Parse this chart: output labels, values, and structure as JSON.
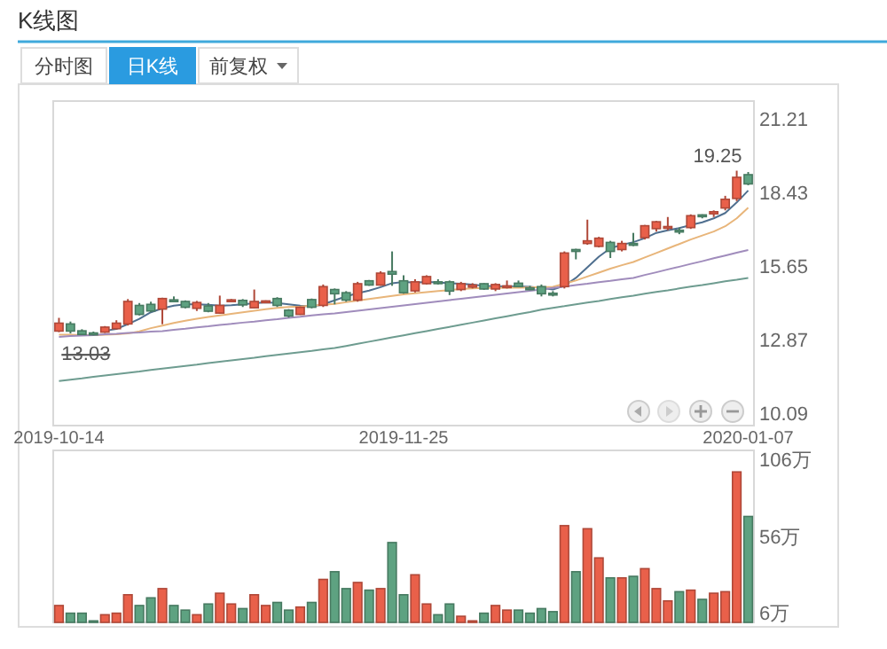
{
  "chart_data": [
    {
      "type": "candlestick",
      "title": "K线图",
      "annotations": [
        "分时图",
        "日K线",
        "前复权",
        "19.25",
        "13.03"
      ],
      "categories": [
        "2019-10-14",
        null,
        null,
        null,
        null,
        null,
        null,
        null,
        null,
        null,
        null,
        null,
        null,
        null,
        null,
        null,
        null,
        null,
        null,
        null,
        null,
        null,
        null,
        null,
        null,
        null,
        null,
        null,
        null,
        null,
        "2019-11-25",
        null,
        null,
        null,
        null,
        null,
        null,
        null,
        null,
        null,
        null,
        null,
        null,
        null,
        null,
        null,
        null,
        null,
        null,
        null,
        null,
        null,
        null,
        null,
        null,
        null,
        null,
        null,
        null,
        null,
        "2020-01-07"
      ],
      "ohlc": [
        [
          13.19,
          13.69,
          13.15,
          13.49
        ],
        [
          13.46,
          13.55,
          13.1,
          13.19
        ],
        [
          13.2,
          13.26,
          13.05,
          13.06
        ],
        [
          13.12,
          13.17,
          13.03,
          13.05
        ],
        [
          13.15,
          13.38,
          13.12,
          13.34
        ],
        [
          13.28,
          13.6,
          13.25,
          13.49
        ],
        [
          13.46,
          14.4,
          13.4,
          14.31
        ],
        [
          14.16,
          14.25,
          13.78,
          13.82
        ],
        [
          14.2,
          14.3,
          13.9,
          13.95
        ],
        [
          14.02,
          14.45,
          13.45,
          14.42
        ],
        [
          14.37,
          14.5,
          14.3,
          14.31
        ],
        [
          14.31,
          14.35,
          14.05,
          14.09
        ],
        [
          14.05,
          14.33,
          13.95,
          14.27
        ],
        [
          14.14,
          14.25,
          13.9,
          13.94
        ],
        [
          13.87,
          14.53,
          13.85,
          14.16
        ],
        [
          14.33,
          14.4,
          14.3,
          14.37
        ],
        [
          14.35,
          14.4,
          14.1,
          14.18
        ],
        [
          14.07,
          14.76,
          14.05,
          14.31
        ],
        [
          14.29,
          14.35,
          14.27,
          14.33
        ],
        [
          14.42,
          14.47,
          14.1,
          14.16
        ],
        [
          13.98,
          14.02,
          13.7,
          13.76
        ],
        [
          13.82,
          14.12,
          13.8,
          14.09
        ],
        [
          14.38,
          14.42,
          14.05,
          14.09
        ],
        [
          14.16,
          14.95,
          14.1,
          14.87
        ],
        [
          14.76,
          14.8,
          14.2,
          14.6
        ],
        [
          14.64,
          14.7,
          14.3,
          14.36
        ],
        [
          14.36,
          15.05,
          14.3,
          14.98
        ],
        [
          15.09,
          15.12,
          14.9,
          14.93
        ],
        [
          14.93,
          15.45,
          14.9,
          15.38
        ],
        [
          15.44,
          16.2,
          14.9,
          15.34
        ],
        [
          15.09,
          15.3,
          14.6,
          14.64
        ],
        [
          14.71,
          15.15,
          14.65,
          15.05
        ],
        [
          14.98,
          15.3,
          14.95,
          15.25
        ],
        [
          15.05,
          15.15,
          14.95,
          15.0
        ],
        [
          15.05,
          15.1,
          14.55,
          14.7
        ],
        [
          14.76,
          15.05,
          14.7,
          14.98
        ],
        [
          14.85,
          15.0,
          14.8,
          14.93
        ],
        [
          14.98,
          15.0,
          14.75,
          14.78
        ],
        [
          14.78,
          15.0,
          14.7,
          14.95
        ],
        [
          14.85,
          15.1,
          14.8,
          14.9
        ],
        [
          15.0,
          15.1,
          14.85,
          14.87
        ],
        [
          14.82,
          14.9,
          14.75,
          14.8
        ],
        [
          14.87,
          14.95,
          14.5,
          14.6
        ],
        [
          14.62,
          14.7,
          14.5,
          14.58
        ],
        [
          14.87,
          16.2,
          14.8,
          16.14
        ],
        [
          16.27,
          16.3,
          15.9,
          16.2
        ],
        [
          16.5,
          17.4,
          16.45,
          16.6
        ],
        [
          16.39,
          16.75,
          16.35,
          16.7
        ],
        [
          16.54,
          16.6,
          15.95,
          16.2
        ],
        [
          16.27,
          16.6,
          16.2,
          16.5
        ],
        [
          16.5,
          16.9,
          16.4,
          16.45
        ],
        [
          16.72,
          17.2,
          16.65,
          17.17
        ],
        [
          17.06,
          17.35,
          16.95,
          17.32
        ],
        [
          17.08,
          17.5,
          17.0,
          17.14
        ],
        [
          17.0,
          17.1,
          16.85,
          16.95
        ],
        [
          17.1,
          17.6,
          17.05,
          17.55
        ],
        [
          17.58,
          17.6,
          17.45,
          17.52
        ],
        [
          17.62,
          17.75,
          17.5,
          17.7
        ],
        [
          17.84,
          18.3,
          17.75,
          18.17
        ],
        [
          18.2,
          19.25,
          18.1,
          19.0
        ],
        [
          19.1,
          19.2,
          18.7,
          18.75
        ]
      ],
      "colors": [
        "#e9604a",
        "#5ea281",
        "#5ea281",
        "#5ea281",
        "#e9604a",
        "#e9604a",
        "#e9604a",
        "#5ea281",
        "#5ea281",
        "#e9604a",
        "#5ea281",
        "#5ea281",
        "#e9604a",
        "#5ea281",
        "#e9604a",
        "#e9604a",
        "#5ea281",
        "#e9604a",
        "#e9604a",
        "#5ea281",
        "#5ea281",
        "#e9604a",
        "#5ea281",
        "#e9604a",
        "#5ea281",
        "#5ea281",
        "#e9604a",
        "#5ea281",
        "#e9604a",
        "#5ea281",
        "#5ea281",
        "#e9604a",
        "#e9604a",
        "#5ea281",
        "#5ea281",
        "#e9604a",
        "#e9604a",
        "#5ea281",
        "#e9604a",
        "#e9604a",
        "#5ea281",
        "#5ea281",
        "#5ea281",
        "#5ea281",
        "#e9604a",
        "#5ea281",
        "#e9604a",
        "#e9604a",
        "#5ea281",
        "#e9604a",
        "#5ea281",
        "#e9604a",
        "#e9604a",
        "#e9604a",
        "#5ea281",
        "#e9604a",
        "#5ea281",
        "#e9604a",
        "#e9604a",
        "#e9604a",
        "#5ea281"
      ],
      "series": [
        {
          "type": "line",
          "color": "#4f6f8f",
          "values": [
            null,
            null,
            null,
            null,
            13.2,
            13.27,
            13.45,
            13.65,
            13.9,
            14.05,
            14.15,
            14.2,
            14.2,
            14.18,
            14.15,
            14.17,
            14.2,
            14.24,
            14.28,
            14.25,
            14.2,
            14.15,
            14.12,
            14.2,
            14.35,
            14.5,
            14.62,
            14.72,
            14.85,
            15.0,
            15.05,
            15.02,
            15.05,
            15.03,
            15.0,
            14.98,
            14.95,
            14.9,
            14.88,
            14.88,
            14.88,
            14.86,
            14.82,
            14.76,
            14.9,
            15.2,
            15.6,
            16.0,
            16.32,
            16.45,
            16.55,
            16.7,
            16.9,
            17.0,
            17.08,
            17.2,
            17.3,
            17.45,
            17.65,
            18.05,
            18.5
          ]
        },
        {
          "type": "line",
          "color": "#e8b57a",
          "values": [
            13.05,
            13.05,
            13.04,
            13.04,
            13.05,
            13.07,
            13.1,
            13.18,
            13.3,
            13.4,
            13.5,
            13.58,
            13.66,
            13.72,
            13.78,
            13.84,
            13.9,
            13.96,
            14.02,
            14.07,
            14.1,
            14.12,
            14.15,
            14.18,
            14.22,
            14.28,
            14.34,
            14.4,
            14.46,
            14.52,
            14.58,
            14.62,
            14.66,
            14.7,
            14.74,
            14.78,
            14.8,
            14.82,
            14.82,
            14.83,
            14.83,
            14.84,
            14.85,
            14.86,
            14.98,
            15.1,
            15.25,
            15.4,
            15.55,
            15.68,
            15.8,
            15.97,
            16.14,
            16.31,
            16.48,
            16.65,
            16.8,
            16.95,
            17.15,
            17.45,
            17.85
          ]
        },
        {
          "type": "line",
          "color": "#a08cbc",
          "values": [
            12.97,
            13.0,
            13.02,
            13.04,
            13.07,
            13.09,
            13.12,
            13.14,
            13.17,
            13.19,
            13.24,
            13.28,
            13.33,
            13.37,
            13.42,
            13.46,
            13.51,
            13.55,
            13.6,
            13.64,
            13.69,
            13.73,
            13.78,
            13.82,
            13.86,
            13.91,
            13.96,
            14.01,
            14.06,
            14.11,
            14.16,
            14.21,
            14.26,
            14.31,
            14.36,
            14.41,
            14.46,
            14.51,
            14.56,
            14.61,
            14.66,
            14.71,
            14.76,
            14.82,
            14.87,
            14.93,
            14.98,
            15.04,
            15.09,
            15.15,
            15.2,
            15.31,
            15.41,
            15.52,
            15.62,
            15.73,
            15.83,
            15.94,
            16.04,
            16.15,
            16.25
          ]
        },
        {
          "type": "line",
          "color": "#6e9c90",
          "values": [
            11.3,
            11.35,
            11.4,
            11.46,
            11.51,
            11.56,
            11.61,
            11.66,
            11.72,
            11.77,
            11.82,
            11.87,
            11.92,
            11.98,
            12.03,
            12.08,
            12.13,
            12.18,
            12.24,
            12.29,
            12.34,
            12.39,
            12.44,
            12.5,
            12.55,
            12.63,
            12.71,
            12.79,
            12.87,
            12.95,
            13.03,
            13.11,
            13.19,
            13.27,
            13.35,
            13.43,
            13.51,
            13.59,
            13.67,
            13.75,
            13.83,
            13.91,
            14.0,
            14.07,
            14.13,
            14.2,
            14.27,
            14.33,
            14.4,
            14.47,
            14.53,
            14.6,
            14.67,
            14.73,
            14.8,
            14.87,
            14.93,
            15.0,
            15.07,
            15.13,
            15.2
          ]
        }
      ],
      "ylim": [
        9.62,
        21.88
      ],
      "yticks": [
        10.09,
        12.87,
        15.65,
        18.43,
        21.21
      ]
    },
    {
      "type": "bar",
      "tick_labels": "y",
      "categories": [
        null,
        null,
        null,
        null,
        null,
        null,
        null,
        null,
        null,
        null,
        null,
        null,
        null,
        null,
        null,
        null,
        null,
        null,
        null,
        null,
        null,
        null,
        null,
        null,
        null,
        null,
        null,
        null,
        null,
        null,
        null,
        null,
        null,
        null,
        null,
        null,
        null,
        null,
        null,
        null,
        null,
        null,
        null,
        null,
        null,
        null,
        null,
        null,
        null,
        null,
        null,
        null,
        null,
        null,
        null,
        null,
        null,
        null,
        null,
        null,
        null
      ],
      "values": [
        11,
        6,
        6,
        1,
        5,
        6,
        18,
        11,
        16,
        22,
        11,
        8,
        5,
        12,
        19,
        12,
        9,
        18,
        11,
        13,
        8,
        10,
        13,
        28,
        33,
        22,
        26,
        21,
        22,
        52,
        18,
        31,
        12,
        5,
        12,
        4,
        1,
        6,
        11,
        8,
        8,
        6,
        9,
        7,
        63,
        33,
        61,
        42,
        29,
        29,
        30,
        35,
        22,
        14,
        20,
        21,
        15,
        19,
        20,
        98,
        69
      ],
      "colors": [
        "#e9604a",
        "#5ea281",
        "#5ea281",
        "#5ea281",
        "#e9604a",
        "#e9604a",
        "#e9604a",
        "#5ea281",
        "#5ea281",
        "#e9604a",
        "#5ea281",
        "#5ea281",
        "#e9604a",
        "#5ea281",
        "#e9604a",
        "#e9604a",
        "#5ea281",
        "#e9604a",
        "#e9604a",
        "#5ea281",
        "#5ea281",
        "#e9604a",
        "#5ea281",
        "#e9604a",
        "#5ea281",
        "#5ea281",
        "#e9604a",
        "#5ea281",
        "#e9604a",
        "#5ea281",
        "#5ea281",
        "#e9604a",
        "#e9604a",
        "#5ea281",
        "#5ea281",
        "#e9604a",
        "#e9604a",
        "#5ea281",
        "#e9604a",
        "#e9604a",
        "#5ea281",
        "#5ea281",
        "#5ea281",
        "#5ea281",
        "#e9604a",
        "#5ea281",
        "#e9604a",
        "#e9604a",
        "#5ea281",
        "#e9604a",
        "#5ea281",
        "#e9604a",
        "#e9604a",
        "#e9604a",
        "#5ea281",
        "#e9604a",
        "#5ea281",
        "#e9604a",
        "#e9604a",
        "#e9604a",
        "#5ea281"
      ],
      "ylim": [
        0,
        112
      ],
      "yticks": [
        {
          "value": 6,
          "label": "6万"
        },
        {
          "value": 56,
          "label": "56万"
        },
        {
          "value": 106,
          "label": "106万"
        }
      ]
    }
  ]
}
